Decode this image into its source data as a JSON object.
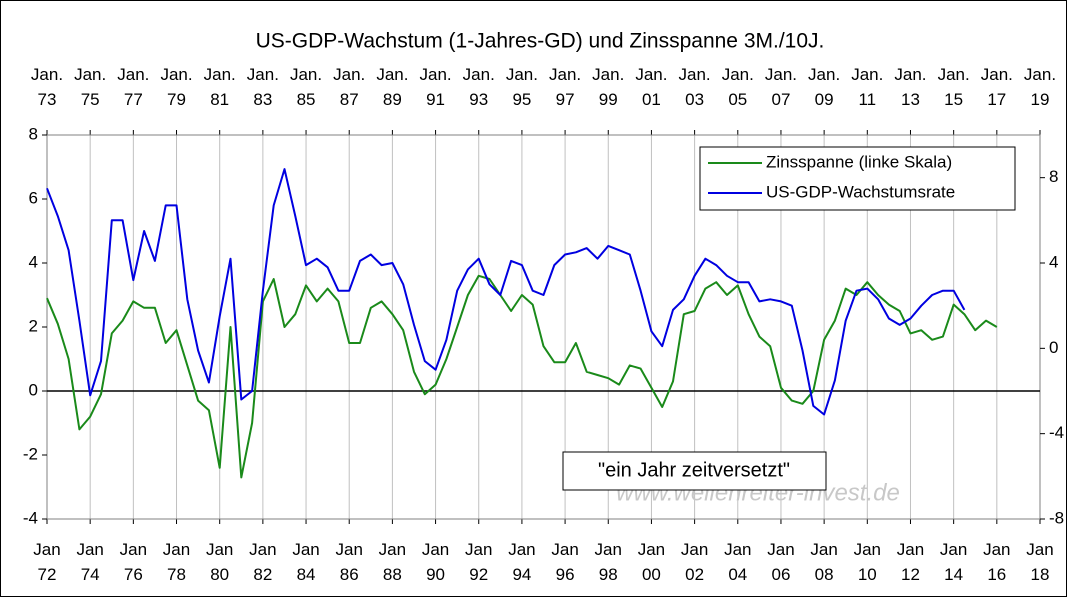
{
  "chart_data": {
    "type": "line",
    "title": "US-GDP-Wachstum (1-Jahres-GD) und Zinsspanne 3M./10J.",
    "annotation": "\"ein Jahr zeitversetzt\"",
    "watermark": "www.wellenreiter-invest.de",
    "xlim": [
      1972,
      2018
    ],
    "xticks": [
      {
        "value": 1972,
        "label": "Jan\n72"
      },
      {
        "value": 1974,
        "label": "Jan\n74"
      },
      {
        "value": 1976,
        "label": "Jan\n76"
      },
      {
        "value": 1978,
        "label": "Jan\n78"
      },
      {
        "value": 1980,
        "label": "Jan\n80"
      },
      {
        "value": 1982,
        "label": "Jan\n82"
      },
      {
        "value": 1984,
        "label": "Jan\n84"
      },
      {
        "value": 1986,
        "label": "Jan\n86"
      },
      {
        "value": 1988,
        "label": "Jan\n88"
      },
      {
        "value": 1990,
        "label": "Jan\n90"
      },
      {
        "value": 1992,
        "label": "Jan\n92"
      },
      {
        "value": 1994,
        "label": "Jan\n94"
      },
      {
        "value": 1996,
        "label": "Jan\n96"
      },
      {
        "value": 1998,
        "label": "Jan\n98"
      },
      {
        "value": 2000,
        "label": "Jan\n00"
      },
      {
        "value": 2002,
        "label": "Jan\n02"
      },
      {
        "value": 2004,
        "label": "Jan\n04"
      },
      {
        "value": 2006,
        "label": "Jan\n06"
      },
      {
        "value": 2008,
        "label": "Jan\n08"
      },
      {
        "value": 2010,
        "label": "Jan\n10"
      },
      {
        "value": 2012,
        "label": "Jan\n12"
      },
      {
        "value": 2014,
        "label": "Jan\n14"
      },
      {
        "value": 2016,
        "label": "Jan\n16"
      },
      {
        "value": 2018,
        "label": "Jan\n18"
      }
    ],
    "x2lim": [
      1973,
      2019
    ],
    "x2ticks": [
      {
        "value": 1973,
        "label": "Jan.\n73"
      },
      {
        "value": 1975,
        "label": "Jan.\n75"
      },
      {
        "value": 1977,
        "label": "Jan.\n77"
      },
      {
        "value": 1979,
        "label": "Jan.\n79"
      },
      {
        "value": 1981,
        "label": "Jan.\n81"
      },
      {
        "value": 1983,
        "label": "Jan.\n83"
      },
      {
        "value": 1985,
        "label": "Jan.\n85"
      },
      {
        "value": 1987,
        "label": "Jan.\n87"
      },
      {
        "value": 1989,
        "label": "Jan.\n89"
      },
      {
        "value": 1991,
        "label": "Jan.\n91"
      },
      {
        "value": 1993,
        "label": "Jan.\n93"
      },
      {
        "value": 1995,
        "label": "Jan.\n95"
      },
      {
        "value": 1997,
        "label": "Jan.\n97"
      },
      {
        "value": 1999,
        "label": "Jan.\n99"
      },
      {
        "value": 2001,
        "label": "Jan.\n01"
      },
      {
        "value": 2003,
        "label": "Jan.\n03"
      },
      {
        "value": 2005,
        "label": "Jan.\n05"
      },
      {
        "value": 2007,
        "label": "Jan.\n07"
      },
      {
        "value": 2009,
        "label": "Jan.\n09"
      },
      {
        "value": 2011,
        "label": "Jan.\n11"
      },
      {
        "value": 2013,
        "label": "Jan.\n13"
      },
      {
        "value": 2015,
        "label": "Jan.\n15"
      },
      {
        "value": 2017,
        "label": "Jan.\n17"
      },
      {
        "value": 2019,
        "label": "Jan.\n19"
      }
    ],
    "ylim": [
      -4,
      8
    ],
    "yticks": [
      -4,
      -2,
      0,
      2,
      4,
      6,
      8
    ],
    "y2lim": [
      -8,
      10
    ],
    "y2ticks": [
      -8,
      -4,
      0,
      4,
      8
    ],
    "grid": true,
    "legend": "upper right",
    "x": [
      1972,
      1972.5,
      1973,
      1973.5,
      1974,
      1974.5,
      1975,
      1975.5,
      1976,
      1976.5,
      1977,
      1977.5,
      1978,
      1978.5,
      1979,
      1979.5,
      1980,
      1980.5,
      1981,
      1981.5,
      1982,
      1982.5,
      1983,
      1983.5,
      1984,
      1984.5,
      1985,
      1985.5,
      1986,
      1986.5,
      1987,
      1987.5,
      1988,
      1988.5,
      1989,
      1989.5,
      1990,
      1990.5,
      1991,
      1991.5,
      1992,
      1992.5,
      1993,
      1993.5,
      1994,
      1994.5,
      1995,
      1995.5,
      1996,
      1996.5,
      1997,
      1997.5,
      1998,
      1998.5,
      1999,
      1999.5,
      2000,
      2000.5,
      2001,
      2001.5,
      2002,
      2002.5,
      2003,
      2003.5,
      2004,
      2004.5,
      2005,
      2005.5,
      2006,
      2006.5,
      2007,
      2007.5,
      2008,
      2008.5,
      2009,
      2009.5,
      2010,
      2010.5,
      2011,
      2011.5,
      2012,
      2012.5,
      2013,
      2013.5,
      2014,
      2014.5,
      2015,
      2015.5,
      2016
    ],
    "series": [
      {
        "name": "Zinsspanne (linke Skala)",
        "color": "#1a8a1a",
        "axis": "y",
        "values": [
          2.9,
          2.1,
          1.0,
          -1.2,
          -0.8,
          -0.1,
          1.8,
          2.2,
          2.8,
          2.6,
          2.6,
          1.5,
          1.9,
          0.8,
          -0.3,
          -0.6,
          -2.4,
          2.0,
          -2.7,
          -1.0,
          2.8,
          3.5,
          2.0,
          2.4,
          3.3,
          2.8,
          3.2,
          2.8,
          1.5,
          1.5,
          2.6,
          2.8,
          2.4,
          1.9,
          0.6,
          -0.1,
          0.2,
          1.0,
          2.0,
          3.0,
          3.6,
          3.5,
          3.0,
          2.5,
          3.0,
          2.7,
          1.4,
          0.9,
          0.9,
          1.5,
          0.6,
          0.5,
          0.4,
          0.2,
          0.8,
          0.7,
          0.1,
          -0.5,
          0.3,
          2.4,
          2.5,
          3.2,
          3.4,
          3.0,
          3.3,
          2.4,
          1.7,
          1.4,
          0.1,
          -0.3,
          -0.4,
          0.0,
          1.6,
          2.2,
          3.2,
          3.0,
          3.4,
          3.0,
          2.7,
          2.5,
          1.8,
          1.9,
          1.6,
          1.7,
          2.7,
          2.4,
          1.9,
          2.2,
          2.0
        ]
      },
      {
        "name": "US-GDP-Wachstumsrate",
        "color": "#0000e0",
        "axis": "y2",
        "values": [
          7.5,
          6.2,
          4.6,
          1.3,
          -2.2,
          -0.6,
          6.0,
          6.0,
          3.2,
          5.5,
          4.1,
          6.7,
          6.7,
          2.3,
          -0.1,
          -1.6,
          1.5,
          4.2,
          -2.4,
          -2.0,
          2.7,
          6.7,
          8.4,
          6.2,
          3.9,
          4.2,
          3.8,
          2.7,
          2.7,
          4.1,
          4.4,
          3.9,
          4.0,
          3.0,
          1.1,
          -0.6,
          -1.0,
          0.4,
          2.7,
          3.7,
          4.2,
          3.0,
          2.5,
          4.1,
          3.9,
          2.7,
          2.5,
          3.9,
          4.4,
          4.5,
          4.7,
          4.2,
          4.8,
          4.6,
          4.4,
          2.7,
          0.8,
          0.1,
          1.8,
          2.3,
          3.4,
          4.2,
          3.9,
          3.4,
          3.1,
          3.1,
          2.2,
          2.3,
          2.2,
          2.0,
          -0.1,
          -2.7,
          -3.1,
          -1.5,
          1.3,
          2.7,
          2.8,
          2.3,
          1.4,
          1.1,
          1.4,
          2.0,
          2.5,
          2.7,
          2.7,
          1.8,
          null,
          null,
          null
        ]
      }
    ]
  }
}
